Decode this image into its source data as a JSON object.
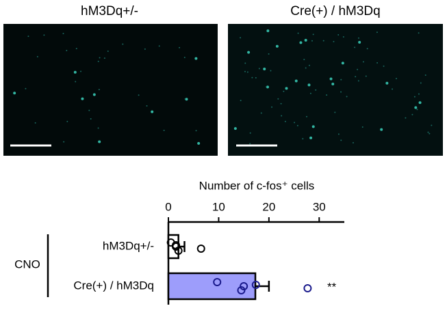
{
  "image_labels": [
    "hM3Dq+/-",
    "Cre(+) / hM3Dq"
  ],
  "chart_data": {
    "type": "bar",
    "orientation": "horizontal",
    "x_label": "Number of c-fos⁺ cells",
    "group_label": "CNO",
    "categories": [
      "hM3Dq+/-",
      "Cre(+) / hM3Dq"
    ],
    "values": [
      2,
      17.3
    ],
    "errors": [
      1.2,
      2.7
    ],
    "colors": [
      "#ffffff",
      "#9d9dfb"
    ],
    "points": [
      [
        0.5,
        1.5,
        2,
        1.5,
        6.5
      ],
      [
        9.7,
        15,
        14.5,
        17.4,
        27.7
      ]
    ],
    "point_colors": [
      "#000000",
      "#1a1a8c"
    ],
    "significance": [
      null,
      "**"
    ],
    "xlim": [
      0,
      35
    ],
    "xticks": [
      0,
      10,
      20,
      30
    ]
  }
}
